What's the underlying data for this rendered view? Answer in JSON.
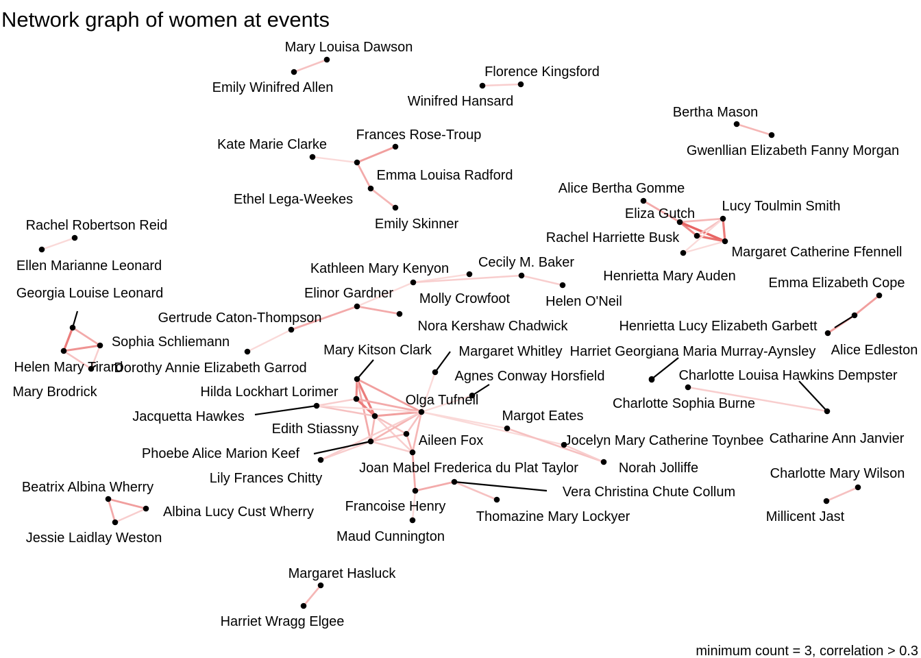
{
  "title": "Network graph of women at events",
  "caption": "minimum count = 3, correlation > 0.3",
  "chart_data": {
    "type": "network",
    "nodes": [
      {
        "id": "mld",
        "name": "Mary Louisa Dawson"
      },
      {
        "id": "ewa",
        "name": "Emily Winifred Allen"
      },
      {
        "id": "fk",
        "name": "Florence Kingsford"
      },
      {
        "id": "wh",
        "name": "Winifred Hansard"
      },
      {
        "id": "bm",
        "name": "Bertha Mason"
      },
      {
        "id": "gefm",
        "name": "Gwenllian Elizabeth Fanny Morgan"
      },
      {
        "id": "kmc",
        "name": "Kate Marie Clarke"
      },
      {
        "id": "frt",
        "name": "Frances Rose-Troup"
      },
      {
        "id": "elr",
        "name": "Emma Louisa Radford"
      },
      {
        "id": "elw",
        "name": "Ethel Lega-Weekes"
      },
      {
        "id": "es",
        "name": "Emily Skinner"
      },
      {
        "id": "abg",
        "name": "Alice Bertha Gomme"
      },
      {
        "id": "eg",
        "name": "Eliza Gutch"
      },
      {
        "id": "lts",
        "name": "Lucy Toulmin Smith"
      },
      {
        "id": "rhb",
        "name": "Rachel Harriette Busk"
      },
      {
        "id": "mcf",
        "name": "Margaret Catherine Ffennell"
      },
      {
        "id": "hma",
        "name": "Henrietta Mary Auden"
      },
      {
        "id": "rrr",
        "name": "Rachel Robertson Reid"
      },
      {
        "id": "eml",
        "name": "Ellen Marianne Leonard"
      },
      {
        "id": "kmk",
        "name": "Kathleen Mary Kenyon"
      },
      {
        "id": "cmb",
        "name": "Cecily M. Baker"
      },
      {
        "id": "mc",
        "name": "Molly Crowfoot"
      },
      {
        "id": "hon",
        "name": "Helen O'Neil"
      },
      {
        "id": "egard",
        "name": "Elinor Gardner"
      },
      {
        "id": "nkc",
        "name": "Nora Kershaw Chadwick"
      },
      {
        "id": "gct",
        "name": "Gertrude Caton-Thompson"
      },
      {
        "id": "daeg",
        "name": "Dorothy Annie Elizabeth Garrod"
      },
      {
        "id": "gll",
        "name": "Georgia Louise Leonard"
      },
      {
        "id": "ss",
        "name": "Sophia Schliemann"
      },
      {
        "id": "hmt",
        "name": "Helen Mary Tirard"
      },
      {
        "id": "mb",
        "name": "Mary Brodrick"
      },
      {
        "id": "eec",
        "name": "Emma Elizabeth Cope"
      },
      {
        "id": "hleg",
        "name": "Henrietta Lucy Elizabeth Garbett"
      },
      {
        "id": "ae",
        "name": "Alice Edleston"
      },
      {
        "id": "mkc",
        "name": "Mary Kitson Clark"
      },
      {
        "id": "mw",
        "name": "Margaret Whitley"
      },
      {
        "id": "ach",
        "name": "Agnes Conway Horsfield"
      },
      {
        "id": "hgma",
        "name": "Harriet Georgiana Maria Murray-Aynsley"
      },
      {
        "id": "clhd",
        "name": "Charlotte Louisa Hawkins Dempster"
      },
      {
        "id": "hll",
        "name": "Hilda Lockhart Lorimer"
      },
      {
        "id": "ot",
        "name": "Olga Tufnell"
      },
      {
        "id": "csb",
        "name": "Charlotte Sophia Burne"
      },
      {
        "id": "jh",
        "name": "Jacquetta Hawkes"
      },
      {
        "id": "me",
        "name": "Margot Eates"
      },
      {
        "id": "est",
        "name": "Edith Stiassny"
      },
      {
        "id": "caj",
        "name": "Catharine Ann Janvier"
      },
      {
        "id": "af",
        "name": "Aileen Fox"
      },
      {
        "id": "jmct",
        "name": "Jocelyn Mary Catherine Toynbee"
      },
      {
        "id": "pamk",
        "name": "Phoebe Alice Marion Keef"
      },
      {
        "id": "nj",
        "name": "Norah Jolliffe"
      },
      {
        "id": "lfc",
        "name": "Lily Frances Chitty"
      },
      {
        "id": "jmft",
        "name": "Joan Mabel Frederica du Plat Taylor"
      },
      {
        "id": "cmw",
        "name": "Charlotte Mary Wilson"
      },
      {
        "id": "baw",
        "name": "Beatrix Albina Wherry"
      },
      {
        "id": "alcw",
        "name": "Albina Lucy Cust Wherry"
      },
      {
        "id": "vccc",
        "name": "Vera Christina Chute Collum"
      },
      {
        "id": "mj",
        "name": "Millicent Jast"
      },
      {
        "id": "fh",
        "name": "Francoise Henry"
      },
      {
        "id": "jlw",
        "name": "Jessie Laidlay Weston"
      },
      {
        "id": "tml",
        "name": "Thomazine Mary Lockyer"
      },
      {
        "id": "mcu",
        "name": "Maud Cunnington"
      },
      {
        "id": "mh",
        "name": "Margaret Hasluck"
      },
      {
        "id": "hwe",
        "name": "Harriet Wragg Elgee"
      }
    ],
    "edges": [
      {
        "source": "mld",
        "target": "ewa",
        "correlation": 0.45
      },
      {
        "source": "fk",
        "target": "wh",
        "correlation": 0.4
      },
      {
        "source": "bm",
        "target": "gefm",
        "correlation": 0.5
      },
      {
        "source": "kmc",
        "target": "elw",
        "correlation": 0.35
      },
      {
        "source": "elw",
        "target": "frt",
        "correlation": 0.6
      },
      {
        "source": "elw",
        "target": "elr",
        "correlation": 0.55
      },
      {
        "source": "elr",
        "target": "es",
        "correlation": 0.5
      },
      {
        "source": "abg",
        "target": "eg",
        "correlation": 0.55
      },
      {
        "source": "eg",
        "target": "lts",
        "correlation": 0.5
      },
      {
        "source": "eg",
        "target": "rhb",
        "correlation": 0.7
      },
      {
        "source": "eg",
        "target": "mcf",
        "correlation": 0.85
      },
      {
        "source": "lts",
        "target": "mcf",
        "correlation": 0.75
      },
      {
        "source": "lts",
        "target": "rhb",
        "correlation": 0.45
      },
      {
        "source": "rhb",
        "target": "mcf",
        "correlation": 0.8
      },
      {
        "source": "hma",
        "target": "lts",
        "correlation": 0.35
      },
      {
        "source": "hma",
        "target": "mcf",
        "correlation": 0.35
      },
      {
        "source": "rrr",
        "target": "eml",
        "correlation": 0.35
      },
      {
        "source": "kmk",
        "target": "cmb",
        "correlation": 0.35
      },
      {
        "source": "kmk",
        "target": "mc",
        "correlation": 0.4
      },
      {
        "source": "mc",
        "target": "hon",
        "correlation": 0.4
      },
      {
        "source": "kmk",
        "target": "egard",
        "correlation": 0.35
      },
      {
        "source": "egard",
        "target": "nkc",
        "correlation": 0.55
      },
      {
        "source": "egard",
        "target": "gct",
        "correlation": 0.55
      },
      {
        "source": "gct",
        "target": "daeg",
        "correlation": 0.35
      },
      {
        "source": "gll",
        "target": "ss",
        "correlation": 0.55
      },
      {
        "source": "gll",
        "target": "hmt",
        "correlation": 0.75
      },
      {
        "source": "hmt",
        "target": "ss",
        "correlation": 0.65
      },
      {
        "source": "hmt",
        "target": "mb",
        "correlation": 0.45
      },
      {
        "source": "ss",
        "target": "mb",
        "correlation": 0.4
      },
      {
        "source": "eec",
        "target": "hleg",
        "correlation": 0.6
      },
      {
        "source": "hleg",
        "target": "ae",
        "correlation": 0.6
      },
      {
        "source": "hgma",
        "target": "csb",
        "correlation": 0.5
      },
      {
        "source": "clhd",
        "target": "caj",
        "correlation": 0.4
      },
      {
        "source": "cmw",
        "target": "mj",
        "correlation": 0.45
      },
      {
        "source": "baw",
        "target": "alcw",
        "correlation": 0.6
      },
      {
        "source": "baw",
        "target": "jlw",
        "correlation": 0.55
      },
      {
        "source": "alcw",
        "target": "jlw",
        "correlation": 0.4
      },
      {
        "source": "mh",
        "target": "hwe",
        "correlation": 0.5
      },
      {
        "source": "mkc",
        "target": "hll",
        "correlation": 0.7
      },
      {
        "source": "mkc",
        "target": "est",
        "correlation": 0.75
      },
      {
        "source": "mkc",
        "target": "ot",
        "correlation": 0.6
      },
      {
        "source": "mkc",
        "target": "pamk",
        "correlation": 0.55
      },
      {
        "source": "hll",
        "target": "est",
        "correlation": 0.75
      },
      {
        "source": "hll",
        "target": "ot",
        "correlation": 0.55
      },
      {
        "source": "est",
        "target": "ot",
        "correlation": 0.6
      },
      {
        "source": "est",
        "target": "pamk",
        "correlation": 0.5
      },
      {
        "source": "est",
        "target": "af",
        "correlation": 0.45
      },
      {
        "source": "est",
        "target": "jmft",
        "correlation": 0.4
      },
      {
        "source": "jh",
        "target": "hll",
        "correlation": 0.4
      },
      {
        "source": "jh",
        "target": "est",
        "correlation": 0.45
      },
      {
        "source": "jh",
        "target": "ot",
        "correlation": 0.35
      },
      {
        "source": "mw",
        "target": "ot",
        "correlation": 0.35
      },
      {
        "source": "ach",
        "target": "ot",
        "correlation": 0.35
      },
      {
        "source": "ot",
        "target": "me",
        "correlation": 0.35
      },
      {
        "source": "ot",
        "target": "pamk",
        "correlation": 0.5
      },
      {
        "source": "ot",
        "target": "af",
        "correlation": 0.45
      },
      {
        "source": "ot",
        "target": "jmft",
        "correlation": 0.5
      },
      {
        "source": "ot",
        "target": "lfc",
        "correlation": 0.4
      },
      {
        "source": "ot",
        "target": "jmct",
        "correlation": 0.35
      },
      {
        "source": "pamk",
        "target": "af",
        "correlation": 0.45
      },
      {
        "source": "pamk",
        "target": "jmft",
        "correlation": 0.4
      },
      {
        "source": "pamk",
        "target": "lfc",
        "correlation": 0.4
      },
      {
        "source": "af",
        "target": "jmft",
        "correlation": 0.5
      },
      {
        "source": "jmft",
        "target": "fh",
        "correlation": 0.55
      },
      {
        "source": "fh",
        "target": "vccc",
        "correlation": 0.55
      },
      {
        "source": "vccc",
        "target": "tml",
        "correlation": 0.45
      },
      {
        "source": "fh",
        "target": "mcu",
        "correlation": 0.35
      },
      {
        "source": "me",
        "target": "nj",
        "correlation": 0.45
      },
      {
        "source": "jmct",
        "target": "nj",
        "correlation": 0.4
      }
    ]
  }
}
